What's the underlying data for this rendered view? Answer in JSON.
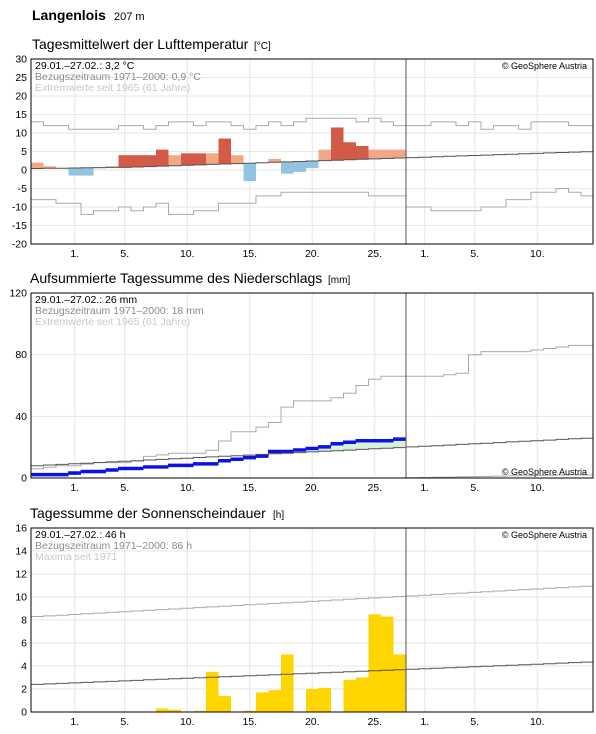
{
  "station": {
    "name": "Langenlois",
    "elevation": "207 m"
  },
  "copyright": "© GeoSphere Austria",
  "x_ticks": [
    "1.",
    "5.",
    "10.",
    "15.",
    "20.",
    "25.",
    "1.",
    "5.",
    "10."
  ],
  "chart_data": [
    {
      "type": "bar",
      "title": "Tagesmittelwert der Lufttemperatur",
      "unit": "[°C]",
      "legend": [
        "29.01.–27.02.: 3,2 °C",
        "Bezugszeitraum 1971–2000: 0,9 °C",
        "Extremwerte seit 1965 (61 Jahre)"
      ],
      "ylim": [
        -20,
        30
      ],
      "yticks": [
        -20,
        -15,
        -10,
        -5,
        0,
        5,
        10,
        15,
        20,
        25,
        30
      ],
      "days": [
        "29.01.",
        "30.01.",
        "31.01.",
        "01.02.",
        "02.02.",
        "03.02.",
        "04.02.",
        "05.02.",
        "06.02.",
        "07.02.",
        "08.02.",
        "09.02.",
        "10.02.",
        "11.02.",
        "12.02.",
        "13.02.",
        "14.02.",
        "15.02.",
        "16.02.",
        "17.02.",
        "18.02.",
        "19.02.",
        "20.02.",
        "21.02.",
        "22.02.",
        "23.02.",
        "24.02.",
        "25.02.",
        "26.02.",
        "27.02."
      ],
      "values": [
        2.0,
        1.0,
        0.5,
        -1.5,
        -1.5,
        0.5,
        1.0,
        4.0,
        4.0,
        4.0,
        5.5,
        4.0,
        4.5,
        4.5,
        4.5,
        8.5,
        4.0,
        -3.0,
        2.0,
        3.0,
        -1.0,
        -0.5,
        0.5,
        5.5,
        11.5,
        7.5,
        6.5,
        5.5,
        5.5,
        5.5
      ],
      "colors": {
        "warm_strong": "#d45a48",
        "warm": "#f2a887",
        "cold": "#92c4e0"
      }
    },
    {
      "type": "area",
      "title": "Aufsummierte Tagessumme des Niederschlags",
      "unit": "[mm]",
      "legend": [
        "29.01.–27.02.: 26 mm",
        "Bezugszeitraum 1971–2000: 18 mm",
        "Extremwerte seit 1965 (61 Jahre)"
      ],
      "ylim": [
        0,
        120
      ],
      "yticks": [
        0,
        40,
        80,
        120
      ],
      "cumulative": [
        3,
        3,
        3,
        4,
        5,
        5,
        6,
        7,
        7,
        8,
        8,
        9,
        9,
        10,
        10,
        12,
        13,
        14,
        15,
        18,
        18,
        19,
        20,
        21,
        23,
        24,
        25,
        25,
        25,
        26
      ],
      "colors": {
        "bar": "#0a12e6",
        "surplus_fill": "#d9f0d9"
      }
    },
    {
      "type": "bar",
      "title": "Tagessumme der Sonnenscheindauer",
      "unit": "[h]",
      "legend": [
        "29.01.–27.02.: 46 h",
        "Bezugszeitraum 1971–2000: 86 h",
        "Maxima seit 1971"
      ],
      "ylim": [
        0,
        16
      ],
      "yticks": [
        0,
        2,
        4,
        6,
        8,
        10,
        12,
        14,
        16
      ],
      "values": [
        0,
        0,
        0,
        0,
        0,
        0,
        0,
        0,
        0,
        0,
        0.3,
        0.2,
        0,
        0.1,
        3.5,
        1.4,
        0,
        0.1,
        1.7,
        1.9,
        5.0,
        0,
        2.0,
        2.1,
        0,
        2.8,
        3.0,
        8.5,
        8.3,
        5.0
      ],
      "colors": {
        "bar": "#ffd500"
      }
    }
  ]
}
